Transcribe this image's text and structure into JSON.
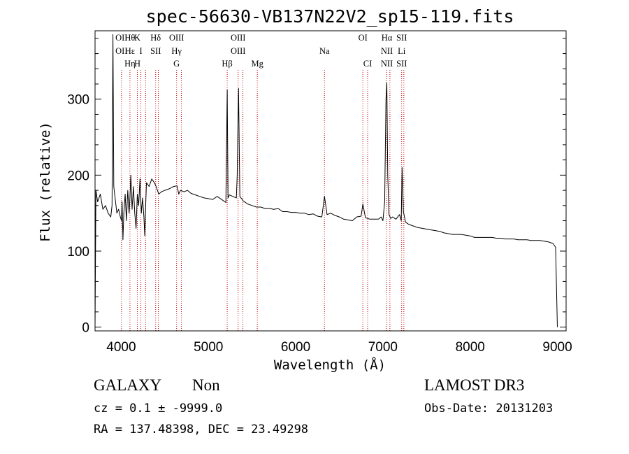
{
  "chart_data": {
    "type": "line",
    "title": "spec-56630-VB137N22V2_sp15-119.fits",
    "xlabel": "Wavelength (Å)",
    "ylabel": "Flux (relative)",
    "xlim": [
      3700,
      9100
    ],
    "ylim": [
      -5,
      390
    ],
    "xticks": [
      4000,
      5000,
      6000,
      7000,
      8000,
      9000
    ],
    "yticks": [
      0,
      100,
      200,
      300
    ],
    "grid": false,
    "line_markers": [
      {
        "wavelength": 4003,
        "labels": [
          "OII",
          "OII"
        ]
      },
      {
        "wavelength": 4100,
        "labels": [
          "Hθ",
          "Hε",
          "Hη"
        ]
      },
      {
        "wavelength": 4185,
        "labels": [
          "K",
          "",
          "H"
        ]
      },
      {
        "wavelength": 4225,
        "labels": [
          "",
          "I",
          ""
        ]
      },
      {
        "wavelength": 4280,
        "labels": []
      },
      {
        "wavelength": 4395,
        "labels": [
          "Hδ",
          "SII",
          ""
        ]
      },
      {
        "wavelength": 4425,
        "labels": []
      },
      {
        "wavelength": 4635,
        "labels": [
          "OIII",
          "Hγ",
          "G"
        ]
      },
      {
        "wavelength": 4690,
        "labels": []
      },
      {
        "wavelength": 5215,
        "labels": [
          "",
          "",
          "Hβ"
        ]
      },
      {
        "wavelength": 5340,
        "labels": [
          "OIII",
          "OIII",
          ""
        ]
      },
      {
        "wavelength": 5395,
        "labels": []
      },
      {
        "wavelength": 5560,
        "labels": [
          "",
          "",
          "Mg"
        ]
      },
      {
        "wavelength": 6330,
        "labels": [
          "",
          "Na",
          ""
        ]
      },
      {
        "wavelength": 6770,
        "labels": [
          "OI",
          "",
          ""
        ]
      },
      {
        "wavelength": 6825,
        "labels": [
          "",
          "",
          "CI"
        ]
      },
      {
        "wavelength": 7045,
        "labels": [
          "Hα",
          "NII",
          "NII"
        ]
      },
      {
        "wavelength": 7080,
        "labels": []
      },
      {
        "wavelength": 7215,
        "labels": [
          "SII",
          "Li",
          "SII"
        ]
      },
      {
        "wavelength": 7240,
        "labels": []
      }
    ],
    "series": [
      {
        "x": [
          3700,
          3710,
          3730,
          3760,
          3790,
          3820,
          3850,
          3880,
          3895,
          3905,
          3915,
          3930,
          3950,
          3970,
          3990,
          4003,
          4010,
          4020,
          4030,
          4045,
          4060,
          4075,
          4090,
          4100,
          4110,
          4125,
          4140,
          4155,
          4170,
          4185,
          4200,
          4215,
          4230,
          4245,
          4260,
          4270,
          4280,
          4290,
          4320,
          4350,
          4380,
          4400,
          4430,
          4460,
          4500,
          4550,
          4600,
          4640,
          4660,
          4680,
          4720,
          4760,
          4800,
          4850,
          4900,
          4950,
          5000,
          5050,
          5100,
          5150,
          5200,
          5215,
          5225,
          5240,
          5280,
          5320,
          5330,
          5345,
          5360,
          5400,
          5450,
          5500,
          5550,
          5600,
          5650,
          5700,
          5750,
          5800,
          5850,
          5900,
          5950,
          6000,
          6050,
          6100,
          6150,
          6200,
          6250,
          6300,
          6330,
          6360,
          6400,
          6450,
          6500,
          6550,
          6600,
          6650,
          6700,
          6750,
          6770,
          6800,
          6850,
          6900,
          6950,
          6980,
          7000,
          7020,
          7035,
          7045,
          7055,
          7070,
          7090,
          7110,
          7150,
          7190,
          7210,
          7220,
          7235,
          7260,
          7300,
          7350,
          7400,
          7450,
          7500,
          7550,
          7600,
          7650,
          7700,
          7750,
          7800,
          7850,
          7900,
          7950,
          8000,
          8050,
          8100,
          8150,
          8200,
          8250,
          8300,
          8350,
          8400,
          8450,
          8500,
          8550,
          8600,
          8650,
          8700,
          8750,
          8800,
          8850,
          8900,
          8950,
          8980,
          9000
        ],
        "y": [
          0,
          180,
          165,
          175,
          155,
          160,
          150,
          145,
          160,
          385,
          185,
          170,
          150,
          155,
          145,
          140,
          165,
          115,
          150,
          175,
          140,
          180,
          150,
          170,
          200,
          155,
          185,
          150,
          130,
          175,
          160,
          195,
          150,
          170,
          145,
          120,
          160,
          190,
          185,
          195,
          190,
          185,
          175,
          178,
          180,
          182,
          185,
          186,
          175,
          180,
          178,
          180,
          176,
          174,
          172,
          170,
          169,
          168,
          172,
          168,
          164,
          312,
          170,
          174,
          172,
          170,
          200,
          314,
          172,
          166,
          162,
          160,
          158,
          158,
          156,
          156,
          155,
          156,
          152,
          152,
          151,
          151,
          150,
          150,
          148,
          149,
          146,
          145,
          172,
          148,
          150,
          147,
          145,
          142,
          141,
          140,
          145,
          146,
          162,
          144,
          142,
          142,
          142,
          145,
          140,
          165,
          300,
          322,
          200,
          148,
          143,
          145,
          142,
          148,
          140,
          210,
          152,
          138,
          135,
          133,
          131,
          130,
          129,
          128,
          127,
          126,
          124,
          123,
          122,
          122,
          122,
          121,
          120,
          118,
          118,
          118,
          118,
          118,
          117,
          117,
          116,
          116,
          116,
          115,
          115,
          115,
          114,
          114,
          114,
          113,
          112,
          110,
          105,
          0
        ]
      }
    ]
  },
  "footer": {
    "class_label": "GALAXY",
    "subclass_label": "Non",
    "survey_label": "LAMOST DR3",
    "cz_text": "cz = 0.1 ± -9999.0",
    "obs_date_text": "Obs-Date: 20131203",
    "coords_text": "RA = 137.48398, DEC =  23.49298"
  }
}
